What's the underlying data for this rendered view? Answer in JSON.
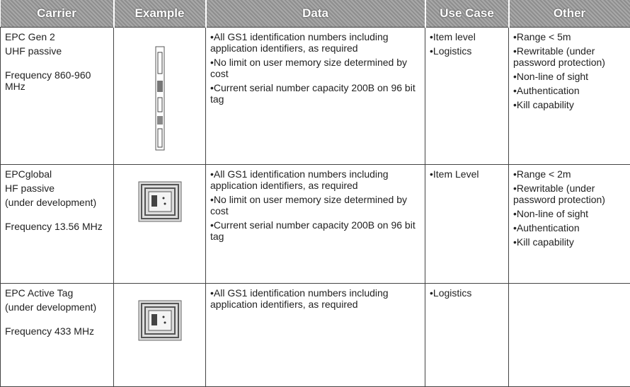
{
  "table": {
    "columns": [
      "Carrier",
      "Example",
      "Data",
      "Use Case",
      "Other"
    ],
    "rows": [
      {
        "carrier": {
          "name": [
            "EPC Gen 2",
            "UHF passive"
          ],
          "frequency": "Frequency 860-960 MHz"
        },
        "data": [
          "•All GS1 identification numbers including application identifiers, as required",
          "•No limit on user memory size determined by cost",
          "•Current serial number capacity 200B on 96 bit tag"
        ],
        "use_case": [
          "•Item level",
          "•Logistics"
        ],
        "other": [
          "•Range < 5m",
          "•Rewritable (under password protection)",
          "•Non-line of sight",
          "•Authentication",
          "•Kill capability"
        ]
      },
      {
        "carrier": {
          "name": [
            "EPCglobal",
            "HF passive",
            "(under development)"
          ],
          "frequency": "Frequency 13.56 MHz"
        },
        "data": [
          "•All GS1 identification numbers including application identifiers, as required",
          "•No limit on user memory size determined by cost",
          "•Current serial number capacity 200B on 96 bit tag"
        ],
        "use_case": [
          "•Item Level"
        ],
        "other": [
          "•Range < 2m",
          "•Rewritable (under password protection)",
          "•Non-line of sight",
          "•Authentication",
          "•Kill capability"
        ]
      },
      {
        "carrier": {
          "name": [
            "EPC Active Tag",
            "(under development)"
          ],
          "frequency": "Frequency 433 MHz"
        },
        "data": [
          "•All GS1 identification numbers including application identifiers, as required"
        ],
        "use_case": [
          "•Logistics"
        ],
        "other": []
      }
    ]
  }
}
